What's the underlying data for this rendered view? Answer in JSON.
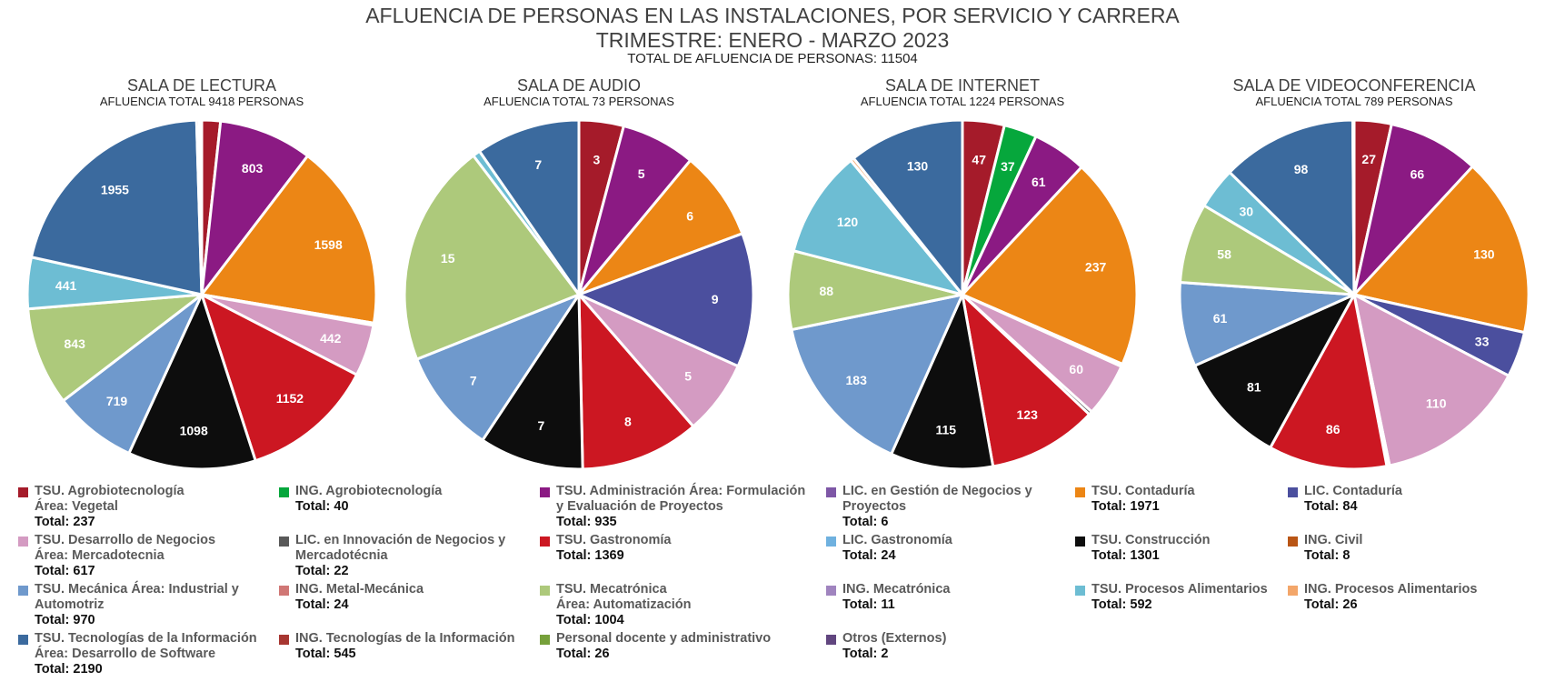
{
  "header": {
    "title": "AFLUENCIA DE PERSONAS EN LAS INSTALACIONES, POR SERVICIO Y CARRERA",
    "subtitle": "TRIMESTRE: ENERO - MARZO 2023",
    "total": "TOTAL DE AFLUENCIA DE PERSONAS: 11504"
  },
  "categories": [
    {
      "key": "agro_veg",
      "label": "TSU.  Agrobiotecnología\nÁrea: Vegetal",
      "total": "Total: 237",
      "color": "#a51b2a"
    },
    {
      "key": "ing_agro",
      "label": "ING. Agrobiotecnología",
      "total": "Total: 40",
      "color": "#06a73c"
    },
    {
      "key": "admin",
      "label": "TSU. Administración Área: Formulación\ny Evaluación de Proyectos",
      "total": "Total: 935",
      "color": "#8b1a83"
    },
    {
      "key": "lic_gest",
      "label": "LIC. en Gestión de Negocios y\nProyectos",
      "total": "Total: 6",
      "color": "#7e57a6"
    },
    {
      "key": "contaduria",
      "label": "TSU. Contaduría",
      "total": "Total: 1971",
      "color": "#ec8615"
    },
    {
      "key": "lic_cont",
      "label": "LIC. Contaduría",
      "total": "Total: 84",
      "color": "#4b4f9e"
    },
    {
      "key": "desarrollo",
      "label": "TSU. Desarrollo de Negocios\nÁrea: Mercadotecnia",
      "total": "Total: 617",
      "color": "#d49bc2"
    },
    {
      "key": "lic_innov",
      "label": "LIC. en Innovación de Negocios y\nMercadotécnia",
      "total": "Total: 22",
      "color": "#595959"
    },
    {
      "key": "gastro",
      "label": "TSU. Gastronomía",
      "total": "Total: 1369",
      "color": "#cc1722"
    },
    {
      "key": "lic_gastro",
      "label": "LIC. Gastronomía",
      "total": "Total: 24",
      "color": "#6fb1df"
    },
    {
      "key": "construccion",
      "label": "TSU. Construcción",
      "total": "Total: 1301",
      "color": "#0d0d0d"
    },
    {
      "key": "ing_civil",
      "label": "ING. Civil",
      "total": "Total: 8",
      "color": "#b95515"
    },
    {
      "key": "mecanica",
      "label": "TSU. Mecánica Área: Industrial y\nAutomotriz",
      "total": "Total: 970",
      "color": "#6f99cc"
    },
    {
      "key": "ing_metal",
      "label": "ING. Metal-Mecánica",
      "total": "Total: 24",
      "color": "#d07775"
    },
    {
      "key": "mecatronica",
      "label": "TSU. Mecatrónica\nÁrea: Automatización",
      "total": "Total: 1004",
      "color": "#adc97b"
    },
    {
      "key": "ing_meca",
      "label": "ING. Mecatrónica",
      "total": "Total: 11",
      "color": "#a084bf"
    },
    {
      "key": "procesos",
      "label": "TSU. Procesos Alimentarios",
      "total": "Total: 592",
      "color": "#6dbdd3"
    },
    {
      "key": "ing_proc",
      "label": "ING. Procesos Alimentarios",
      "total": "Total: 26",
      "color": "#f3a66a"
    },
    {
      "key": "ti",
      "label": "TSU. Tecnologías de la Información\nÁrea: Desarrollo de Software",
      "total": "Total: 2190",
      "color": "#3b6a9e"
    },
    {
      "key": "ing_ti",
      "label": "ING. Tecnologías de la Información",
      "total": "Total: 545",
      "color": "#a73631"
    },
    {
      "key": "personal",
      "label": "Personal docente y administrativo",
      "total": "Total: 26",
      "color": "#76a03a"
    },
    {
      "key": "otros",
      "label": "Otros (Externos)",
      "total": "Total: 2",
      "color": "#61467f"
    }
  ],
  "chart_data": [
    {
      "type": "pie",
      "title": "SALA DE LECTURA",
      "subtitle": "AFLUENCIA TOTAL 9418 PERSONAS",
      "slices": [
        {
          "cat": "agro_veg",
          "value": 160,
          "label": ""
        },
        {
          "cat": "admin",
          "value": 803,
          "label": "803"
        },
        {
          "cat": "contaduria",
          "value": 1598,
          "label": "1598"
        },
        {
          "cat": "lic_innov",
          "value": 20,
          "label": ""
        },
        {
          "cat": "desarrollo",
          "value": 442,
          "label": "442"
        },
        {
          "cat": "gastro",
          "value": 1152,
          "label": "1152"
        },
        {
          "cat": "construccion",
          "value": 1098,
          "label": "1098"
        },
        {
          "cat": "mecanica",
          "value": 719,
          "label": "719"
        },
        {
          "cat": "mecatronica",
          "value": 843,
          "label": "843"
        },
        {
          "cat": "procesos",
          "value": 441,
          "label": "441"
        },
        {
          "cat": "ti",
          "value": 1955,
          "label": "1955"
        },
        {
          "cat": "ing_metal",
          "value": 24,
          "label": ""
        },
        {
          "cat": "ing_proc",
          "value": 20,
          "label": ""
        }
      ]
    },
    {
      "type": "pie",
      "title": "SALA DE AUDIO",
      "subtitle": "AFLUENCIA TOTAL 73 PERSONAS",
      "slices": [
        {
          "cat": "agro_veg",
          "value": 3,
          "label": "3"
        },
        {
          "cat": "admin",
          "value": 5,
          "label": "5"
        },
        {
          "cat": "contaduria",
          "value": 6,
          "label": "6"
        },
        {
          "cat": "lic_cont",
          "value": 9,
          "label": "9"
        },
        {
          "cat": "desarrollo",
          "value": 5,
          "label": "5"
        },
        {
          "cat": "gastro",
          "value": 8,
          "label": "8"
        },
        {
          "cat": "construccion",
          "value": 7,
          "label": "7"
        },
        {
          "cat": "mecanica",
          "value": 7,
          "label": "7"
        },
        {
          "cat": "mecatronica",
          "value": 15,
          "label": "15"
        },
        {
          "cat": "procesos",
          "value": 0.5,
          "label": ""
        },
        {
          "cat": "ti",
          "value": 7,
          "label": "7"
        }
      ]
    },
    {
      "type": "pie",
      "title": "SALA DE INTERNET",
      "subtitle": "AFLUENCIA TOTAL 1224 PERSONAS",
      "slices": [
        {
          "cat": "agro_veg",
          "value": 47,
          "label": "47"
        },
        {
          "cat": "ing_agro",
          "value": 37,
          "label": "37"
        },
        {
          "cat": "admin",
          "value": 61,
          "label": "61"
        },
        {
          "cat": "contaduria",
          "value": 237,
          "label": "237"
        },
        {
          "cat": "lic_gastro",
          "value": 3,
          "label": ""
        },
        {
          "cat": "desarrollo",
          "value": 60,
          "label": "60"
        },
        {
          "cat": "lic_innov",
          "value": 4,
          "label": ""
        },
        {
          "cat": "gastro",
          "value": 123,
          "label": "123"
        },
        {
          "cat": "construccion",
          "value": 115,
          "label": "115"
        },
        {
          "cat": "mecanica",
          "value": 183,
          "label": "183"
        },
        {
          "cat": "mecatronica",
          "value": 88,
          "label": "88"
        },
        {
          "cat": "procesos",
          "value": 120,
          "label": "120"
        },
        {
          "cat": "ing_proc",
          "value": 4,
          "label": ""
        },
        {
          "cat": "ti",
          "value": 130,
          "label": "130"
        }
      ]
    },
    {
      "type": "pie",
      "title": "SALA DE VIDEOCONFERENCIA",
      "subtitle": "AFLUENCIA TOTAL 789 PERSONAS",
      "slices": [
        {
          "cat": "agro_veg",
          "value": 27,
          "label": "27"
        },
        {
          "cat": "admin",
          "value": 66,
          "label": "66"
        },
        {
          "cat": "contaduria",
          "value": 130,
          "label": "130"
        },
        {
          "cat": "lic_cont",
          "value": 33,
          "label": "33"
        },
        {
          "cat": "desarrollo",
          "value": 110,
          "label": "110"
        },
        {
          "cat": "lic_innov",
          "value": 2,
          "label": ""
        },
        {
          "cat": "gastro",
          "value": 86,
          "label": "86"
        },
        {
          "cat": "construccion",
          "value": 81,
          "label": "81"
        },
        {
          "cat": "mecanica",
          "value": 61,
          "label": "61"
        },
        {
          "cat": "mecatronica",
          "value": 58,
          "label": "58"
        },
        {
          "cat": "procesos",
          "value": 30,
          "label": "30"
        },
        {
          "cat": "ti",
          "value": 98,
          "label": "98"
        },
        {
          "cat": "ing_proc",
          "value": 1,
          "label": ""
        }
      ]
    }
  ]
}
